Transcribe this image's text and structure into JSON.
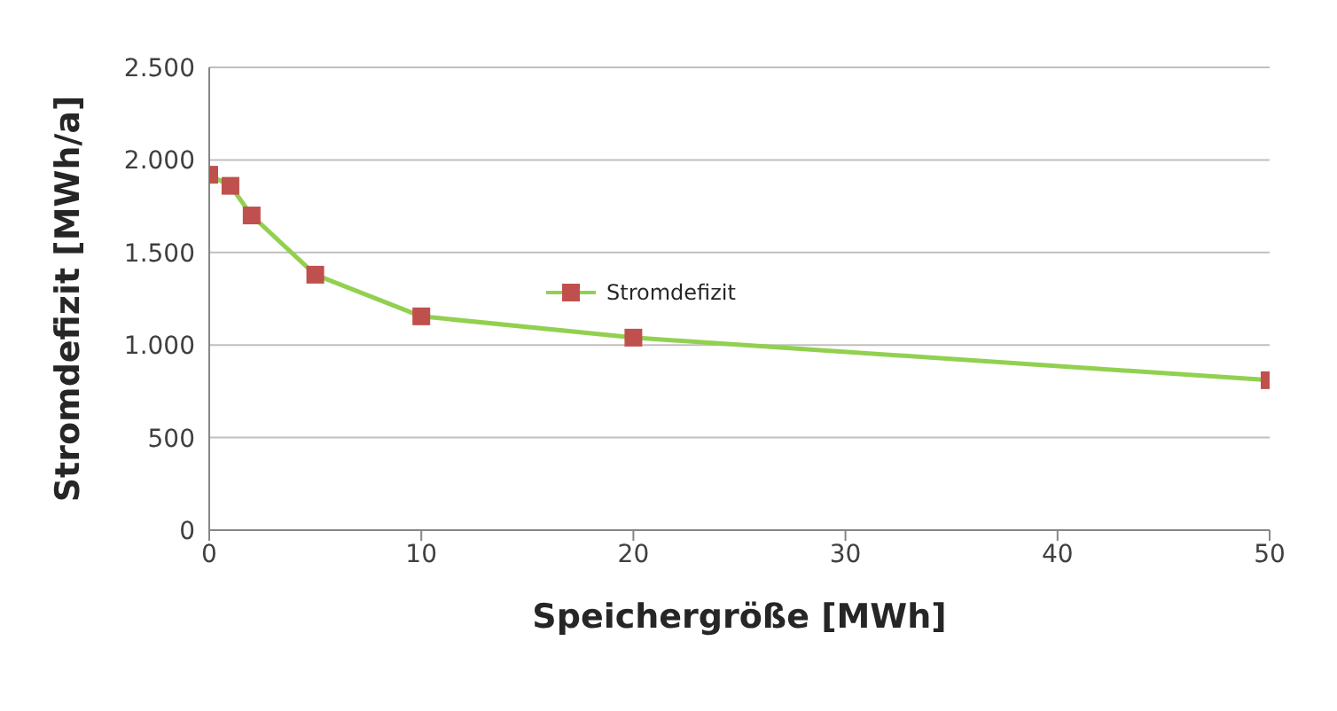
{
  "chart_data": {
    "type": "line",
    "xlabel": "Speichergröße [MWh]",
    "ylabel": "Stromdefizit [MWh/a]",
    "x": [
      0,
      1,
      2,
      5,
      10,
      20,
      50
    ],
    "series": [
      {
        "name": "Stromdefizit",
        "color": "#92d050",
        "colors": [
          "#c0504d",
          "#c0504d",
          "#c0504d",
          "#c0504d",
          "#c0504d",
          "#c0504d",
          "#c0504d"
        ],
        "values": [
          1920,
          1860,
          1700,
          1380,
          1155,
          1040,
          810
        ]
      }
    ],
    "xlim": [
      0,
      50
    ],
    "xticks": [
      0,
      10,
      20,
      30,
      40,
      50
    ],
    "ylim": [
      0,
      2500
    ],
    "yticks": [
      0,
      500,
      {
        "value": 1000,
        "label": "1.000"
      },
      {
        "value": 1500,
        "label": "1.500"
      },
      {
        "value": 2000,
        "label": "2.000"
      },
      {
        "value": 2500,
        "label": "2.500"
      }
    ],
    "grid": "y",
    "legend": "center",
    "marker": "square",
    "line_style": "solid"
  }
}
